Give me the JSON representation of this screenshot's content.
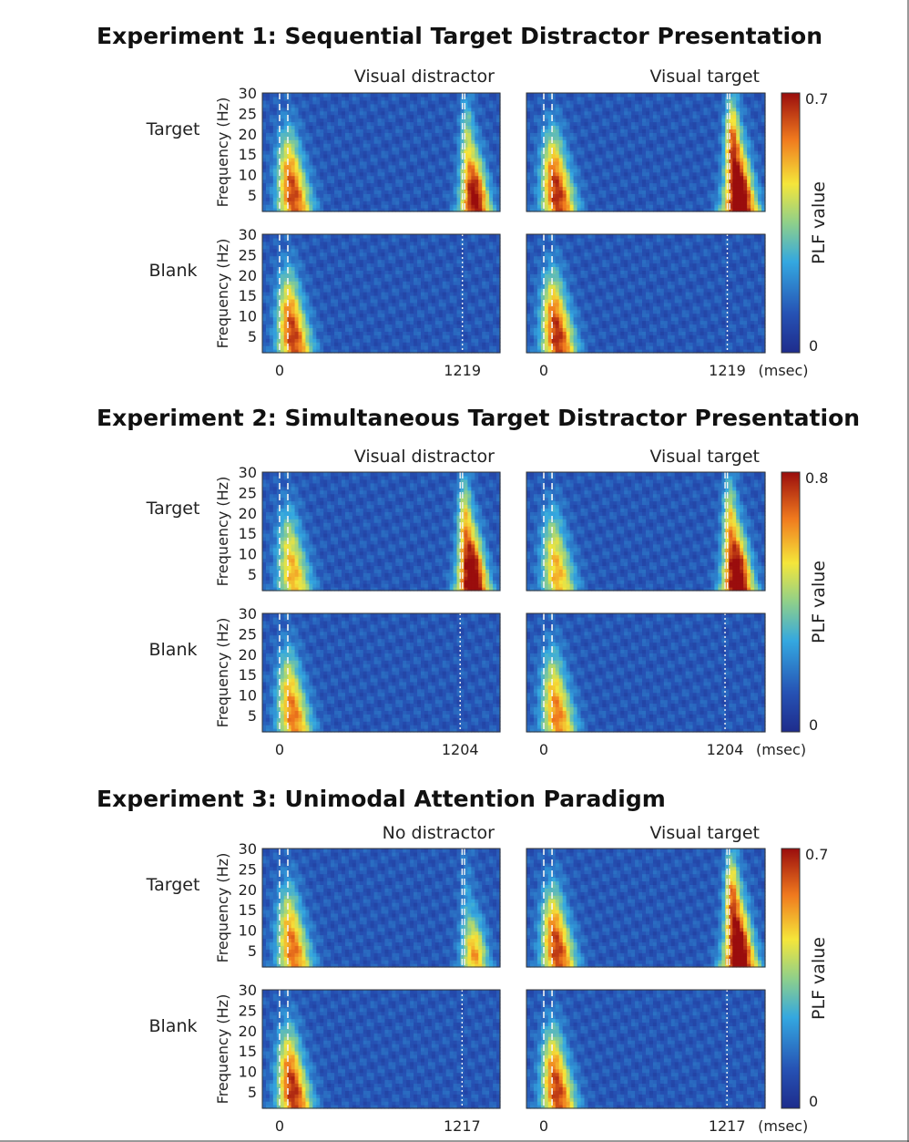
{
  "chart_data": [
    {
      "type": "heatmap",
      "title": "Experiment 1: Sequential Target Distractor Presentation",
      "column_labels": [
        "Visual distractor",
        "Visual target"
      ],
      "row_labels": [
        "Target",
        "Blank"
      ],
      "ylabel": "Frequency (Hz)",
      "yticks": [
        5,
        10,
        15,
        20,
        25,
        30
      ],
      "ylim": [
        1,
        30
      ],
      "x_ticks": [
        "0",
        "1219"
      ],
      "x_unit": "(msec)",
      "second_stimulus_ms": 1219,
      "colorbar": {
        "label": "PLF value",
        "min": 0,
        "max": 0.7,
        "min_label": "0",
        "max_label": "0.7"
      },
      "panels": [
        {
          "row": "Target",
          "column": "Visual distractor",
          "first_response_peak": 0.55,
          "second_response_peak": 0.62,
          "second_spread": 0.7
        },
        {
          "row": "Target",
          "column": "Visual target",
          "first_response_peak": 0.58,
          "second_response_peak": 0.7,
          "second_spread": 1.0
        },
        {
          "row": "Blank",
          "column": "Visual distractor",
          "first_response_peak": 0.56,
          "second_response_peak": 0,
          "second_spread": 0
        },
        {
          "row": "Blank",
          "column": "Visual target",
          "first_response_peak": 0.58,
          "second_response_peak": 0,
          "second_spread": 0
        }
      ]
    },
    {
      "type": "heatmap",
      "title": "Experiment 2: Simultaneous Target Distractor Presentation",
      "column_labels": [
        "Visual distractor",
        "Visual target"
      ],
      "row_labels": [
        "Target",
        "Blank"
      ],
      "ylabel": "Frequency (Hz)",
      "yticks": [
        5,
        10,
        15,
        20,
        25,
        30
      ],
      "ylim": [
        1,
        30
      ],
      "x_ticks": [
        "0",
        "1204"
      ],
      "x_unit": "(msec)",
      "second_stimulus_ms": 1204,
      "colorbar": {
        "label": "PLF value",
        "min": 0,
        "max": 0.8,
        "min_label": "0",
        "max_label": "0.8"
      },
      "panels": [
        {
          "row": "Target",
          "column": "Visual distractor",
          "first_response_peak": 0.48,
          "second_response_peak": 0.8,
          "second_spread": 0.8
        },
        {
          "row": "Target",
          "column": "Visual target",
          "first_response_peak": 0.48,
          "second_response_peak": 0.78,
          "second_spread": 0.8
        },
        {
          "row": "Blank",
          "column": "Visual distractor",
          "first_response_peak": 0.56,
          "second_response_peak": 0,
          "second_spread": 0
        },
        {
          "row": "Blank",
          "column": "Visual target",
          "first_response_peak": 0.55,
          "second_response_peak": 0,
          "second_spread": 0
        }
      ]
    },
    {
      "type": "heatmap",
      "title": "Experiment 3: Unimodal Attention Paradigm",
      "column_labels": [
        "No distractor",
        "Visual target"
      ],
      "row_labels": [
        "Target",
        "Blank"
      ],
      "ylabel": "Frequency (Hz)",
      "yticks": [
        5,
        10,
        15,
        20,
        25,
        30
      ],
      "ylim": [
        1,
        30
      ],
      "x_ticks": [
        "0",
        "1217"
      ],
      "x_unit": "(msec)",
      "second_stimulus_ms": 1217,
      "colorbar": {
        "label": "PLF value",
        "min": 0,
        "max": 0.7,
        "min_label": "0",
        "max_label": "0.7"
      },
      "panels": [
        {
          "row": "Target",
          "column": "No distractor",
          "first_response_peak": 0.5,
          "second_response_peak": 0.42,
          "second_spread": 0.45
        },
        {
          "row": "Target",
          "column": "Visual target",
          "first_response_peak": 0.56,
          "second_response_peak": 0.68,
          "second_spread": 1.0
        },
        {
          "row": "Blank",
          "column": "No distractor",
          "first_response_peak": 0.58,
          "second_response_peak": 0,
          "second_spread": 0
        },
        {
          "row": "Blank",
          "column": "Visual target",
          "first_response_peak": 0.56,
          "second_response_peak": 0,
          "second_spread": 0
        }
      ]
    }
  ]
}
